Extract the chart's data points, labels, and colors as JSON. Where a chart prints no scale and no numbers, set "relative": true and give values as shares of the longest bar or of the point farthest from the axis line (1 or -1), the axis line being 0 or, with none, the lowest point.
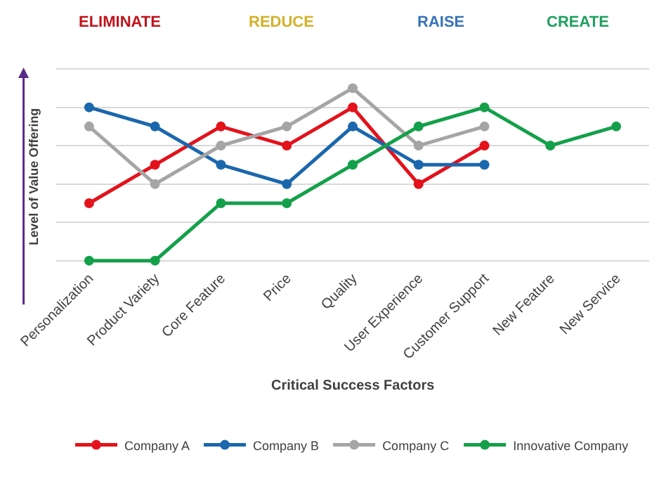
{
  "chart_data": {
    "type": "line",
    "relative": true,
    "xlabel": "Critical Success Factors",
    "ylabel": "Level of Value Offering",
    "categories": [
      "Personalization",
      "Product Variety",
      "Core Feature",
      "Price",
      "Quality",
      "User Experience",
      "Customer Support",
      "New Feature",
      "New Service"
    ],
    "series": [
      {
        "name": "Company A",
        "color": "#e3121b",
        "values": [
          0.333,
          0.556,
          0.778,
          0.667,
          0.889,
          0.444,
          0.667,
          null,
          null
        ]
      },
      {
        "name": "Company B",
        "color": "#1b67ad",
        "values": [
          0.889,
          0.778,
          0.556,
          0.444,
          0.778,
          0.556,
          0.556,
          null,
          null
        ]
      },
      {
        "name": "Company C",
        "color": "#a5a5a5",
        "values": [
          0.778,
          0.444,
          0.667,
          0.778,
          1,
          0.667,
          0.778,
          null,
          null
        ]
      },
      {
        "name": "Innovative Company",
        "color": "#14a04a",
        "values": [
          0,
          0,
          0.333,
          0.333,
          0.556,
          0.778,
          0.889,
          0.667,
          0.778
        ]
      }
    ],
    "annotations": [
      "ELIMINATE",
      "REDUCE",
      "RAISE",
      "CREATE"
    ],
    "grid": "y",
    "legend": "bottom",
    "marker": "circle",
    "line_style": "solid"
  }
}
